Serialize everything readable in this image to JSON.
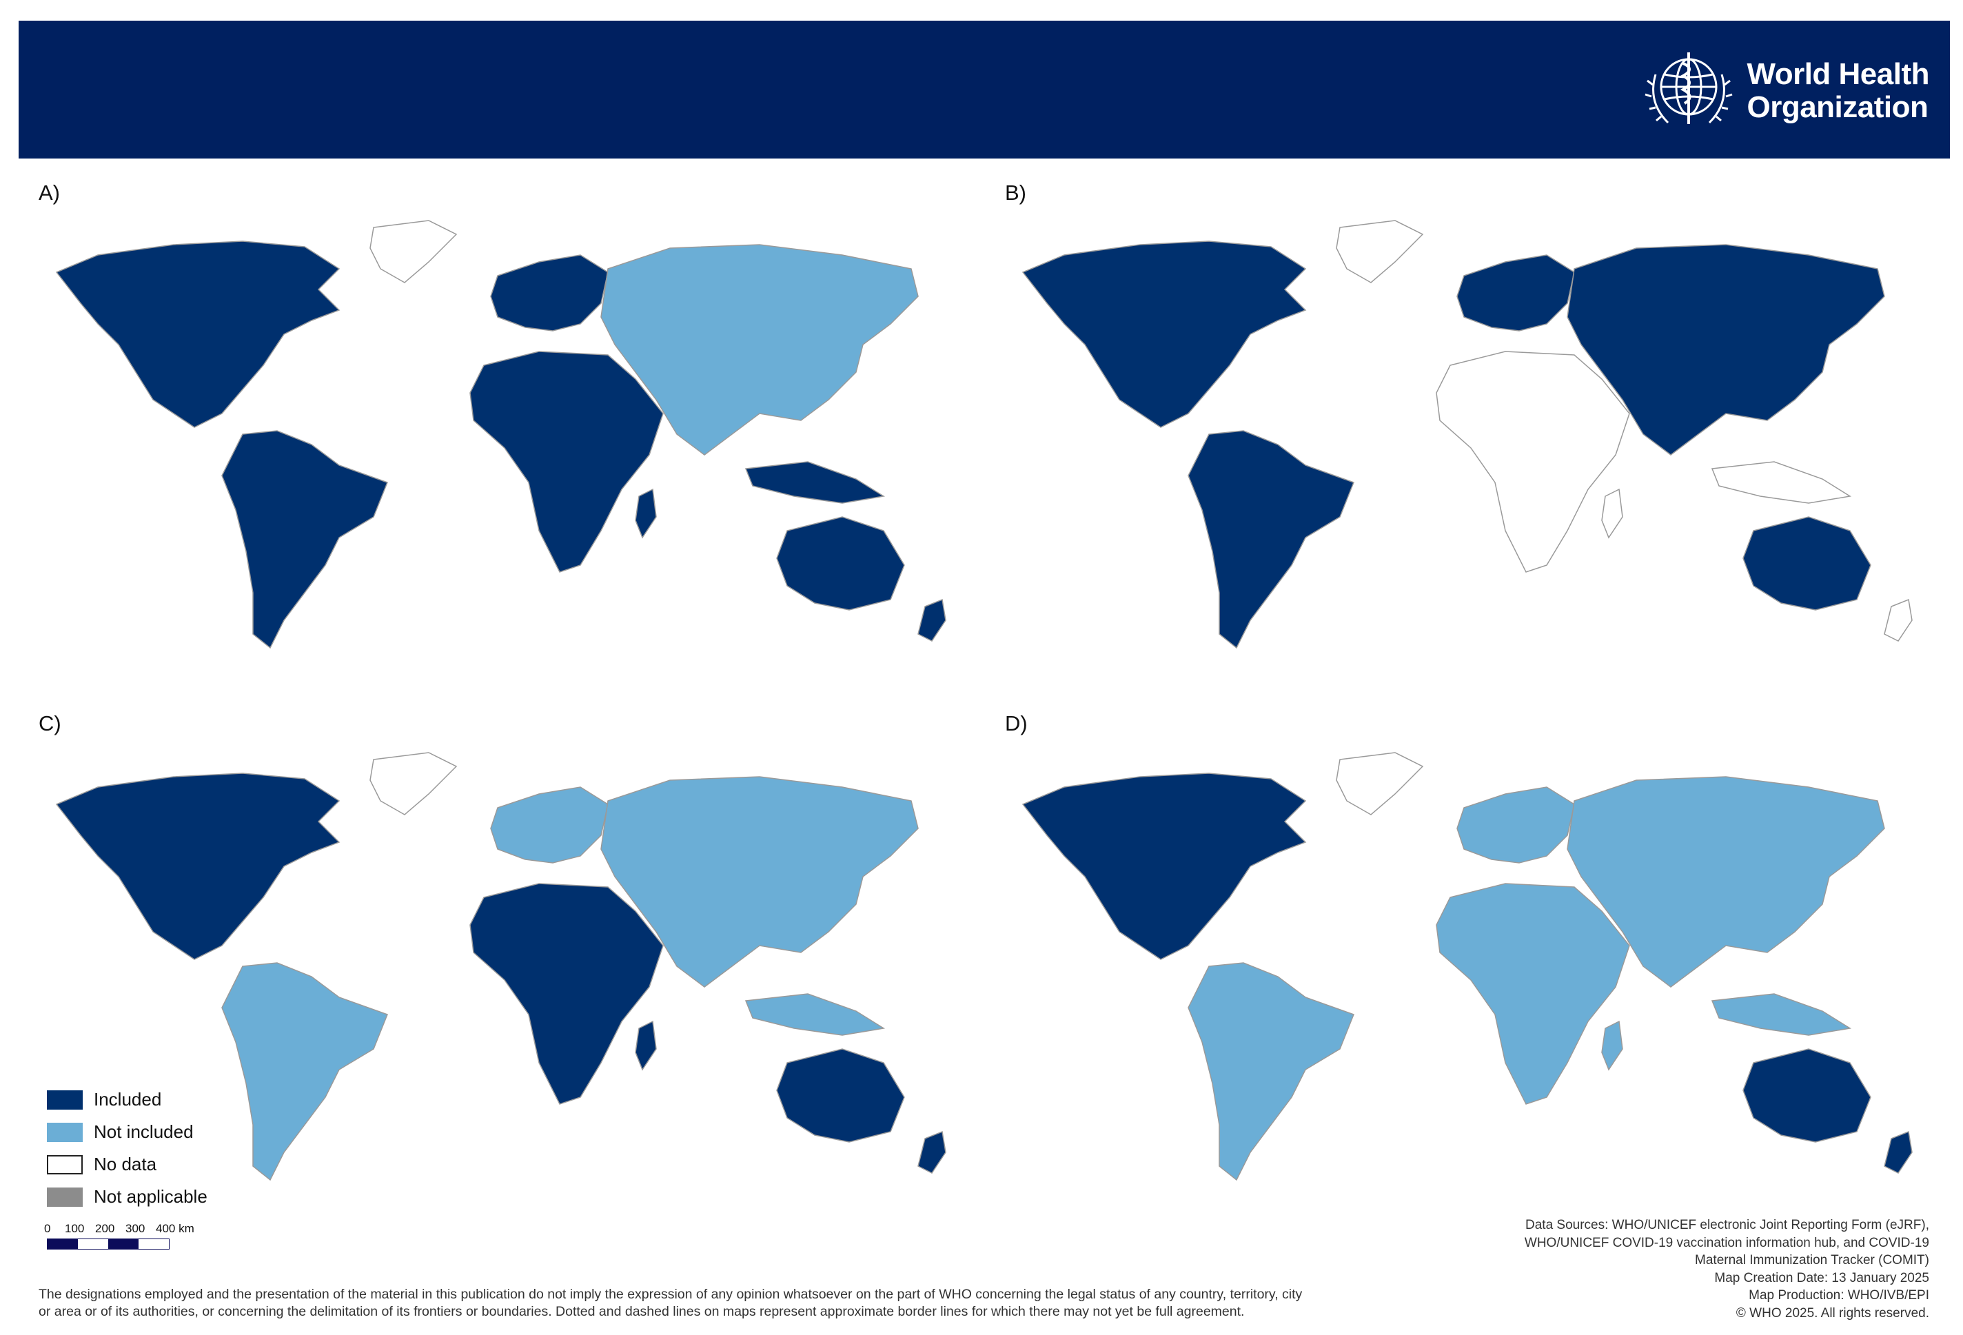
{
  "header": {
    "logo_line1": "World Health",
    "logo_line2": "Organization",
    "bar_color": "#002060"
  },
  "panels": [
    {
      "label": "A)",
      "land_color": "#00306e",
      "icon": "world-map-choropleth"
    },
    {
      "label": "B)",
      "land_color": "#00306e",
      "icon": "world-map-choropleth"
    },
    {
      "label": "C)",
      "land_color": "#00306e",
      "icon": "world-map-choropleth"
    },
    {
      "label": "D)",
      "land_color": "#00306e",
      "icon": "world-map-choropleth"
    }
  ],
  "legend": {
    "items": [
      {
        "label": "Included",
        "color": "#00306e"
      },
      {
        "label": "Not included",
        "color": "#6baed6"
      },
      {
        "label": "No data",
        "color": "#ffffff"
      },
      {
        "label": "Not applicable",
        "color": "#8c8c8c"
      }
    ]
  },
  "scale": {
    "ticks": [
      "0",
      "100",
      "200",
      "300",
      "400 km"
    ]
  },
  "disclaimer": {
    "line1": "The designations employed and the presentation of the material in this publication do not imply the expression of any opinion whatsoever on the part of WHO concerning the legal status of any country, territory, city",
    "line2": "or area or of its authorities, or concerning the delimitation of its frontiers or boundaries. Dotted and dashed lines on maps represent approximate border lines for which there may not yet be full agreement."
  },
  "sources": {
    "line1": "Data Sources:  WHO/UNICEF electronic Joint Reporting Form (eJRF),",
    "line2": "WHO/UNICEF COVID-19 vaccination information hub, and COVID-19",
    "line3": "Maternal Immunization Tracker (COMIT)",
    "line4": "Map Creation Date: 13 January 2025",
    "line5": "Map Production: WHO/IVB/EPI",
    "line6": "© WHO 2025. All rights reserved."
  }
}
